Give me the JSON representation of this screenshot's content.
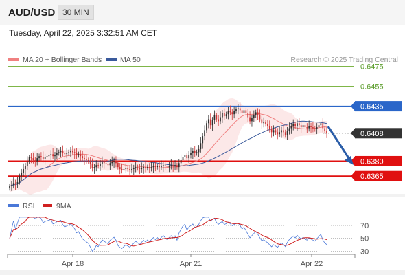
{
  "header": {
    "pair": "AUD/USD",
    "timeframe": "30 MIN",
    "datetime": "Tuesday, April 22, 2025 3:32:51 AM CET"
  },
  "colors": {
    "candle_up": "#2e2e2e",
    "candle_down": "#cc3333",
    "bollinger": "#f08080",
    "ma50": "#3a5a9c",
    "resistance": "#7fb648",
    "support": "#e01010",
    "pivot": "#2a66c9",
    "current": "#333333",
    "rsi": "#4a78d8",
    "rsi_ma": "#d02020"
  },
  "chart_data": [
    {
      "type": "candlestick",
      "title": "",
      "legend": [
        {
          "name": "MA 20 + Bollinger Bands",
          "color": "#f08080"
        },
        {
          "name": "MA 50",
          "color": "#3a5a9c"
        }
      ],
      "watermark": "Research © 2025 Trading Central",
      "x_ticks": [
        "Apr 18",
        "Apr 21",
        "Apr 22"
      ],
      "ylim": [
        0.635,
        0.6485
      ],
      "levels": [
        {
          "label": "0.6475",
          "value": 0.6475,
          "kind": "resistance"
        },
        {
          "label": "0.6455",
          "value": 0.6455,
          "kind": "resistance"
        },
        {
          "label": "0.6435",
          "value": 0.6435,
          "kind": "pivot"
        },
        {
          "label": "0.6408",
          "value": 0.6408,
          "kind": "current"
        },
        {
          "label": "0.6380",
          "value": 0.638,
          "kind": "support"
        },
        {
          "label": "0.6365",
          "value": 0.6365,
          "kind": "support"
        }
      ],
      "close": [
        0.6355,
        0.6356,
        0.6358,
        0.6357,
        0.6359,
        0.6365,
        0.6368,
        0.6372,
        0.6375,
        0.638,
        0.6384,
        0.6383,
        0.6381,
        0.638,
        0.6383,
        0.6385,
        0.6384,
        0.6382,
        0.6384,
        0.6385,
        0.6386,
        0.6387,
        0.6385,
        0.6386,
        0.6388,
        0.6389,
        0.639,
        0.6388,
        0.6387,
        0.6388,
        0.6389,
        0.639,
        0.6389,
        0.6388,
        0.6386,
        0.6387,
        0.6385,
        0.6383,
        0.6382,
        0.6381,
        0.638,
        0.6377,
        0.6373,
        0.6374,
        0.6376,
        0.6375,
        0.6377,
        0.6379,
        0.6378,
        0.6377,
        0.6376,
        0.6378,
        0.6379,
        0.638,
        0.6378,
        0.6374,
        0.6372,
        0.6371,
        0.6372,
        0.6373,
        0.6372,
        0.6371,
        0.6372,
        0.6373,
        0.6374,
        0.6373,
        0.6372,
        0.6373,
        0.6374,
        0.6373,
        0.6374,
        0.6373,
        0.6374,
        0.6375,
        0.6374,
        0.6375,
        0.6374,
        0.6375,
        0.6376,
        0.6375,
        0.6374,
        0.6375,
        0.6376,
        0.6375,
        0.6376,
        0.6374,
        0.6378,
        0.6381,
        0.6384,
        0.6386,
        0.6383,
        0.6386,
        0.6388,
        0.639,
        0.6388,
        0.6389,
        0.6392,
        0.6398,
        0.6405,
        0.6411,
        0.6418,
        0.6422,
        0.6416,
        0.6421,
        0.6426,
        0.6422,
        0.642,
        0.6424,
        0.6428,
        0.6425,
        0.6427,
        0.643,
        0.6429,
        0.6427,
        0.643,
        0.6432,
        0.6433,
        0.6431,
        0.6428,
        0.6431,
        0.6428,
        0.6424,
        0.642,
        0.6423,
        0.6426,
        0.6429,
        0.6426,
        0.6422,
        0.6418,
        0.6419,
        0.6417,
        0.6415,
        0.6412,
        0.6409,
        0.6411,
        0.6409,
        0.6407,
        0.6409,
        0.6411,
        0.6409,
        0.6406,
        0.641,
        0.6413,
        0.6415,
        0.6417,
        0.6415,
        0.6418,
        0.6416,
        0.6414,
        0.6416,
        0.6414,
        0.6413,
        0.6415,
        0.6414,
        0.6413,
        0.6412,
        0.6414,
        0.6416,
        0.6418,
        0.6413,
        0.641,
        0.6408
      ]
    },
    {
      "type": "line",
      "title": "",
      "legend": [
        {
          "name": "RSI",
          "color": "#4a78d8"
        },
        {
          "name": "9MA",
          "color": "#d02020"
        }
      ],
      "ylim": [
        25,
        85
      ],
      "y_ticks": [
        70,
        50,
        30
      ],
      "x_ticks": [
        "Apr 18",
        "Apr 21",
        "Apr 22"
      ]
    }
  ]
}
